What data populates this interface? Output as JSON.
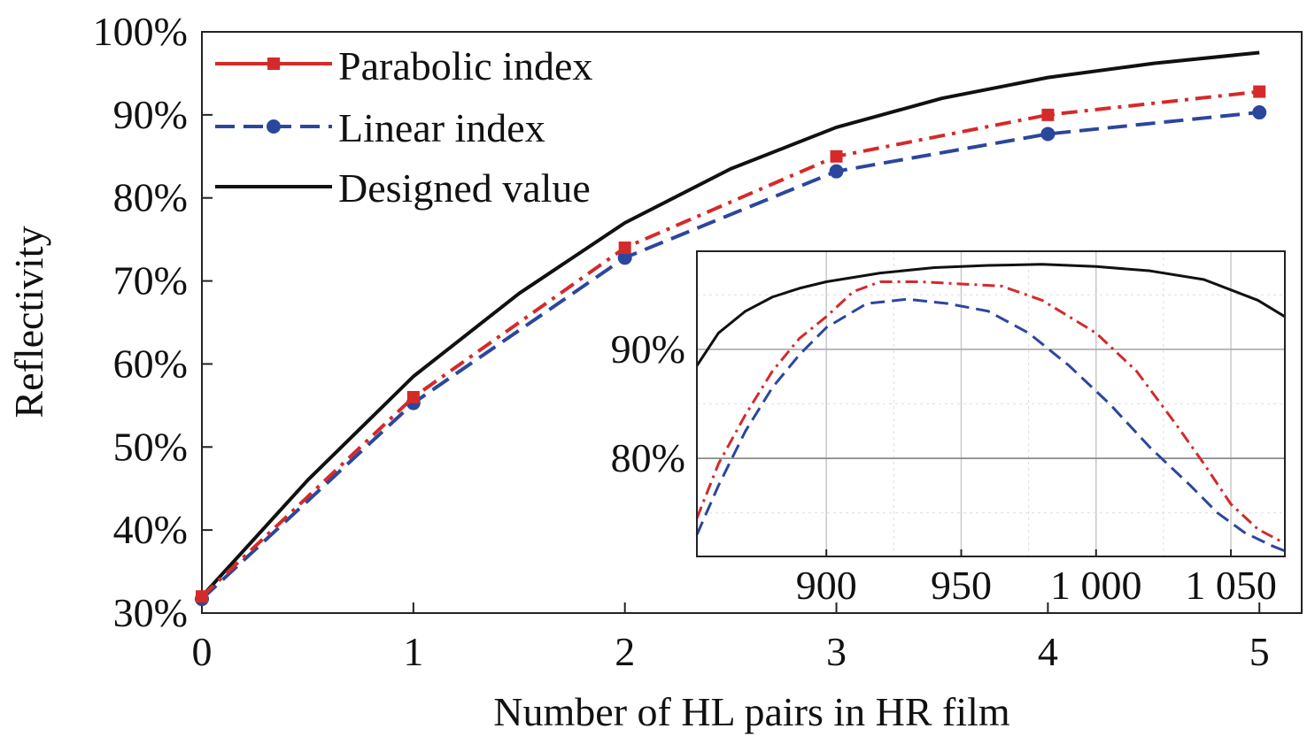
{
  "chart_data": [
    {
      "type": "line",
      "title": "",
      "xlabel": "Number of HL pairs in HR film",
      "ylabel": "Reflectivity",
      "xlim": [
        0,
        5.2
      ],
      "ylim": [
        30,
        100
      ],
      "x_ticks": [
        "0",
        "1",
        "2",
        "3",
        "4",
        "5"
      ],
      "y_ticks": [
        "30%",
        "40%",
        "50%",
        "60%",
        "70%",
        "80%",
        "90%",
        "100%"
      ],
      "legend_position": "top-left",
      "grid": false,
      "series": [
        {
          "name": "Parabolic index",
          "color": "#d42a2a",
          "style": "dash-dot",
          "marker": "square",
          "x": [
            0,
            1,
            2,
            3,
            4,
            5
          ],
          "y": [
            32,
            56,
            74,
            85,
            90,
            92.8
          ]
        },
        {
          "name": "Linear index",
          "color": "#2b479c",
          "style": "dashed",
          "marker": "circle",
          "x": [
            0,
            1,
            2,
            3,
            4,
            5
          ],
          "y": [
            31.7,
            55.3,
            72.8,
            83.2,
            87.7,
            90.3
          ]
        },
        {
          "name": "Designed value",
          "color": "#111111",
          "style": "solid",
          "marker": "none",
          "x": [
            0,
            0.5,
            1,
            1.5,
            2,
            2.5,
            3,
            3.5,
            4,
            4.5,
            5
          ],
          "y": [
            32,
            46,
            58.5,
            68.5,
            77,
            83.5,
            88.5,
            92,
            94.5,
            96.2,
            97.5
          ]
        }
      ]
    },
    {
      "type": "line",
      "title": "",
      "xlabel": "",
      "ylabel": "",
      "xlim": [
        852,
        1070
      ],
      "ylim": [
        71,
        99
      ],
      "x_ticks": [
        "900",
        "950",
        "1 000",
        "1 050"
      ],
      "y_ticks": [
        "80%",
        "90%"
      ],
      "grid": true,
      "series": [
        {
          "color": "#111111",
          "style": "solid",
          "x": [
            852,
            860,
            870,
            880,
            890,
            900,
            920,
            940,
            960,
            980,
            1000,
            1020,
            1040,
            1060,
            1070
          ],
          "y": [
            88.5,
            91.5,
            93.5,
            94.8,
            95.6,
            96.2,
            97.0,
            97.5,
            97.7,
            97.8,
            97.6,
            97.2,
            96.4,
            94.5,
            93.0
          ]
        },
        {
          "color": "#d42a2a",
          "style": "dash-dot",
          "x": [
            852,
            860,
            870,
            880,
            890,
            900,
            910,
            920,
            935,
            950,
            965,
            980,
            1000,
            1015,
            1030,
            1040,
            1050,
            1060,
            1070
          ],
          "y": [
            74.5,
            79.5,
            84.0,
            88.0,
            91.0,
            93.0,
            95.3,
            96.2,
            96.2,
            96.0,
            95.8,
            94.5,
            91.5,
            88.0,
            83.0,
            79.5,
            75.8,
            73.5,
            72.2
          ]
        },
        {
          "color": "#2b479c",
          "style": "dashed",
          "x": [
            852,
            860,
            870,
            880,
            890,
            900,
            915,
            930,
            945,
            960,
            975,
            990,
            1005,
            1020,
            1035,
            1045,
            1055,
            1065,
            1070
          ],
          "y": [
            73.0,
            77.5,
            82.5,
            86.5,
            89.5,
            92.0,
            94.2,
            94.6,
            94.2,
            93.5,
            91.5,
            88.5,
            85.0,
            81.0,
            77.5,
            75.0,
            73.2,
            72.0,
            71.5
          ]
        }
      ]
    }
  ]
}
